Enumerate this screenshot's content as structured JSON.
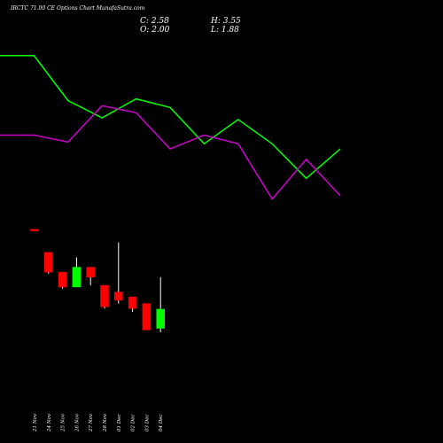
{
  "header": {
    "title": "IRCTC 71.00 CE Options Chart MunafaSutra.com",
    "close": "C: 2.58",
    "open": "O: 2.00",
    "high": "H: 3.55",
    "low": "L: 1.88"
  },
  "colors": {
    "background": "#000000",
    "green_line": "#00ff00",
    "magenta_line": "#cc00cc",
    "up_candle": "#00ff00",
    "down_candle": "#ff0000",
    "wick": "#ffffff",
    "text": "#ffffff"
  },
  "chart_data": {
    "type": "candlestick",
    "dates": [
      "21 Nov",
      "24 Nov",
      "25 Nov",
      "26 Nov",
      "27 Nov",
      "28 Nov",
      "01 Dec",
      "02 Dec",
      "03 Dec",
      "04 Dec"
    ],
    "candles": [
      {
        "open": 5.0,
        "high": 5.0,
        "low": 4.95,
        "close": 4.95
      },
      {
        "open": 4.3,
        "high": 4.3,
        "low": 3.65,
        "close": 3.7
      },
      {
        "open": 3.7,
        "high": 3.7,
        "low": 3.2,
        "close": 3.25
      },
      {
        "open": 3.25,
        "high": 4.15,
        "low": 3.25,
        "close": 3.85
      },
      {
        "open": 3.85,
        "high": 3.85,
        "low": 3.3,
        "close": 3.55
      },
      {
        "open": 3.3,
        "high": 3.3,
        "low": 2.6,
        "close": 2.65
      },
      {
        "open": 3.1,
        "high": 4.6,
        "low": 2.75,
        "close": 2.85
      },
      {
        "open": 2.95,
        "high": 2.95,
        "low": 2.5,
        "close": 2.6
      },
      {
        "open": 2.75,
        "high": 2.75,
        "low": 1.95,
        "close": 1.95
      },
      {
        "open": 2.0,
        "high": 3.55,
        "low": 1.88,
        "close": 2.58
      }
    ],
    "green_line": [
      0.96,
      0.96,
      0.7,
      0.6,
      0.71,
      0.66,
      0.45,
      0.59,
      0.45,
      0.25,
      0.42
    ],
    "magenta_line": [
      0.5,
      0.5,
      0.46,
      0.67,
      0.63,
      0.42,
      0.5,
      0.45,
      0.13,
      0.36,
      0.15
    ]
  }
}
